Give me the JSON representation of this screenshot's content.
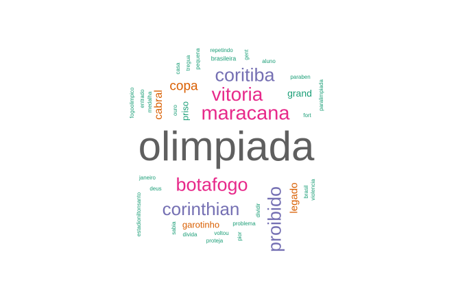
{
  "palette": {
    "gray": "#5f5f5f",
    "pink": "#e7298a",
    "purple": "#7570b3",
    "orange": "#d95f02",
    "green": "#1b9e77"
  },
  "words": [
    {
      "id": "olimpiada",
      "text": "olimpiada",
      "color": "gray"
    },
    {
      "id": "maracana",
      "text": "maracana",
      "color": "pink"
    },
    {
      "id": "vitoria",
      "text": "vitoria",
      "color": "pink"
    },
    {
      "id": "botafogo",
      "text": "botafogo",
      "color": "pink"
    },
    {
      "id": "coritiba",
      "text": "coritiba",
      "color": "purple"
    },
    {
      "id": "corinthian",
      "text": "corinthian",
      "color": "purple"
    },
    {
      "id": "proibido",
      "text": "proibido",
      "color": "purple"
    },
    {
      "id": "copa",
      "text": "copa",
      "color": "orange"
    },
    {
      "id": "cabral",
      "text": "cabral",
      "color": "orange"
    },
    {
      "id": "legado",
      "text": "legado",
      "color": "orange"
    },
    {
      "id": "garotinho",
      "text": "garotinho",
      "color": "orange"
    },
    {
      "id": "grand",
      "text": "grand",
      "color": "green"
    },
    {
      "id": "priso",
      "text": "priso",
      "color": "green"
    },
    {
      "id": "ouro",
      "text": "ouro",
      "color": "green"
    },
    {
      "id": "repetindo",
      "text": "repetindo",
      "color": "green"
    },
    {
      "id": "brasileira",
      "text": "brasileira",
      "color": "green"
    },
    {
      "id": "gent",
      "text": "gent",
      "color": "green"
    },
    {
      "id": "aluno",
      "text": "aluno",
      "color": "green"
    },
    {
      "id": "paraben",
      "text": "paraben",
      "color": "green"
    },
    {
      "id": "fort",
      "text": "fort",
      "color": "green"
    },
    {
      "id": "paralimpiada",
      "text": "paralimpiada",
      "color": "green"
    },
    {
      "id": "casa",
      "text": "casa",
      "color": "green"
    },
    {
      "id": "tregua",
      "text": "tregua",
      "color": "green"
    },
    {
      "id": "pequena",
      "text": "pequena",
      "color": "green"
    },
    {
      "id": "fogoolimpico",
      "text": "fogoolimpico",
      "color": "green"
    },
    {
      "id": "entrado",
      "text": "entrado",
      "color": "green"
    },
    {
      "id": "medalha",
      "text": "medalha",
      "color": "green"
    },
    {
      "id": "janeiro",
      "text": "janeiro",
      "color": "green"
    },
    {
      "id": "deus",
      "text": "deus",
      "color": "green"
    },
    {
      "id": "estadionilton",
      "text": "estadioniltonsanto",
      "color": "green"
    },
    {
      "id": "sabia",
      "text": "sabia",
      "color": "green"
    },
    {
      "id": "divida",
      "text": "divida",
      "color": "green"
    },
    {
      "id": "voltou",
      "text": "voltou",
      "color": "green"
    },
    {
      "id": "proteja",
      "text": "proteja",
      "color": "green"
    },
    {
      "id": "problema",
      "text": "problema",
      "color": "green"
    },
    {
      "id": "pior",
      "text": "pior",
      "color": "green"
    },
    {
      "id": "dividir",
      "text": "dividir",
      "color": "green"
    },
    {
      "id": "brasil",
      "text": "brasil",
      "color": "green"
    },
    {
      "id": "violencia",
      "text": "violencia",
      "color": "green"
    }
  ]
}
